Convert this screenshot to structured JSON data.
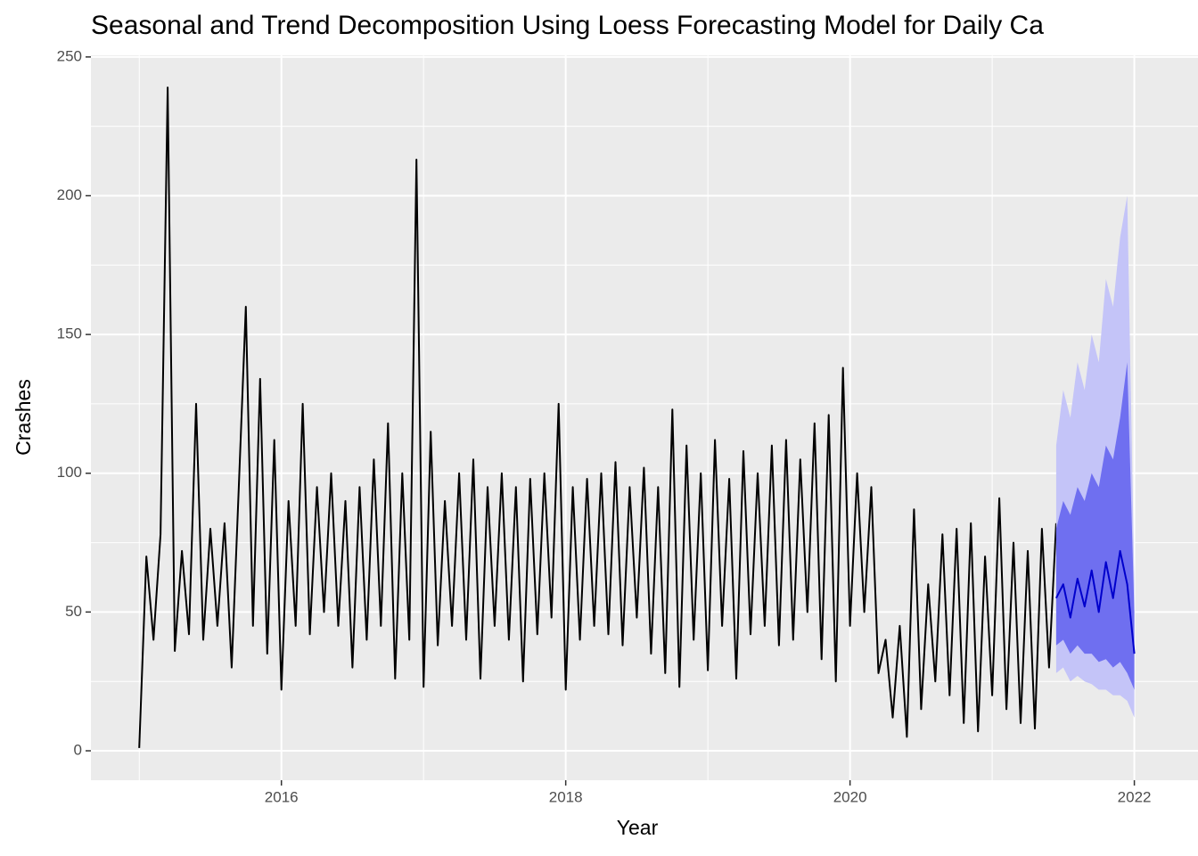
{
  "chart_data": {
    "type": "line",
    "title": "Seasonal and Trend Decomposition Using Loess Forecasting Model for Daily Ca",
    "x_label": "Year",
    "y_label": "Crashes",
    "xlim": [
      2014.66,
      2022.36
    ],
    "ylim": [
      -10.6,
      250.6
    ],
    "xticks": [
      2016,
      2018,
      2020,
      2022
    ],
    "xminor": [
      2015,
      2017,
      2019,
      2021
    ],
    "yticks": [
      0,
      50,
      100,
      150,
      200,
      250
    ],
    "yminor": [
      25,
      75,
      125,
      175,
      225
    ],
    "grid": true,
    "series": [
      {
        "color": "#000000",
        "x": [
          2015.0,
          2015.05,
          2015.1,
          2015.15,
          2015.2,
          2015.25,
          2015.3,
          2015.35,
          2015.4,
          2015.45,
          2015.5,
          2015.55,
          2015.6,
          2015.65,
          2015.7,
          2015.75,
          2015.8,
          2015.85,
          2015.9,
          2015.95,
          2016.0,
          2016.05,
          2016.1,
          2016.15,
          2016.2,
          2016.25,
          2016.3,
          2016.35,
          2016.4,
          2016.45,
          2016.5,
          2016.55,
          2016.6,
          2016.65,
          2016.7,
          2016.75,
          2016.8,
          2016.85,
          2016.9,
          2016.95,
          2017.0,
          2017.05,
          2017.1,
          2017.15,
          2017.2,
          2017.25,
          2017.3,
          2017.35,
          2017.4,
          2017.45,
          2017.5,
          2017.55,
          2017.6,
          2017.65,
          2017.7,
          2017.75,
          2017.8,
          2017.85,
          2017.9,
          2017.95,
          2018.0,
          2018.05,
          2018.1,
          2018.15,
          2018.2,
          2018.25,
          2018.3,
          2018.35,
          2018.4,
          2018.45,
          2018.5,
          2018.55,
          2018.6,
          2018.65,
          2018.7,
          2018.75,
          2018.8,
          2018.85,
          2018.9,
          2018.95,
          2019.0,
          2019.05,
          2019.1,
          2019.15,
          2019.2,
          2019.25,
          2019.3,
          2019.35,
          2019.4,
          2019.45,
          2019.5,
          2019.55,
          2019.6,
          2019.65,
          2019.7,
          2019.75,
          2019.8,
          2019.85,
          2019.9,
          2019.95,
          2020.0,
          2020.05,
          2020.1,
          2020.15,
          2020.2,
          2020.25,
          2020.3,
          2020.35,
          2020.4,
          2020.45,
          2020.5,
          2020.55,
          2020.6,
          2020.65,
          2020.7,
          2020.75,
          2020.8,
          2020.85,
          2020.9,
          2020.95,
          2021.0,
          2021.05,
          2021.1,
          2021.15,
          2021.2,
          2021.25,
          2021.3,
          2021.35,
          2021.4,
          2021.45
        ],
        "values": [
          1,
          70,
          40,
          78,
          239,
          36,
          72,
          42,
          125,
          40,
          80,
          45,
          82,
          30,
          95,
          160,
          45,
          134,
          35,
          112,
          22,
          90,
          45,
          125,
          42,
          95,
          50,
          100,
          45,
          90,
          30,
          95,
          40,
          105,
          45,
          118,
          26,
          100,
          40,
          213,
          23,
          115,
          38,
          90,
          45,
          100,
          40,
          105,
          26,
          95,
          45,
          100,
          40,
          95,
          25,
          98,
          42,
          100,
          48,
          125,
          22,
          95,
          40,
          98,
          45,
          100,
          42,
          104,
          38,
          95,
          48,
          102,
          35,
          95,
          28,
          123,
          23,
          110,
          40,
          100,
          29,
          112,
          45,
          98,
          26,
          108,
          42,
          100,
          45,
          110,
          38,
          112,
          40,
          105,
          50,
          118,
          33,
          121,
          25,
          138,
          45,
          100,
          50,
          95,
          28,
          40,
          12,
          45,
          5,
          87,
          15,
          60,
          25,
          78,
          20,
          80,
          10,
          82,
          7,
          70,
          20,
          91,
          15,
          75,
          10,
          72,
          8,
          80,
          30,
          82
        ]
      }
    ],
    "forecast": {
      "color": "#0000cc",
      "band80_color": "#6f6ff0",
      "band95_color": "#c4c4f8",
      "x": [
        2021.45,
        2021.5,
        2021.55,
        2021.6,
        2021.65,
        2021.7,
        2021.75,
        2021.8,
        2021.85,
        2021.9,
        2021.95,
        2022.0
      ],
      "values": [
        55,
        60,
        48,
        62,
        52,
        65,
        50,
        68,
        55,
        72,
        60,
        35
      ],
      "lower80": [
        38,
        40,
        35,
        38,
        35,
        35,
        32,
        33,
        30,
        32,
        28,
        22
      ],
      "upper80": [
        80,
        90,
        85,
        95,
        90,
        100,
        95,
        110,
        105,
        120,
        140,
        50
      ],
      "lower95": [
        28,
        30,
        25,
        27,
        25,
        24,
        22,
        22,
        20,
        20,
        18,
        12
      ],
      "upper95": [
        110,
        130,
        120,
        140,
        130,
        150,
        140,
        170,
        160,
        185,
        200,
        60
      ]
    }
  }
}
